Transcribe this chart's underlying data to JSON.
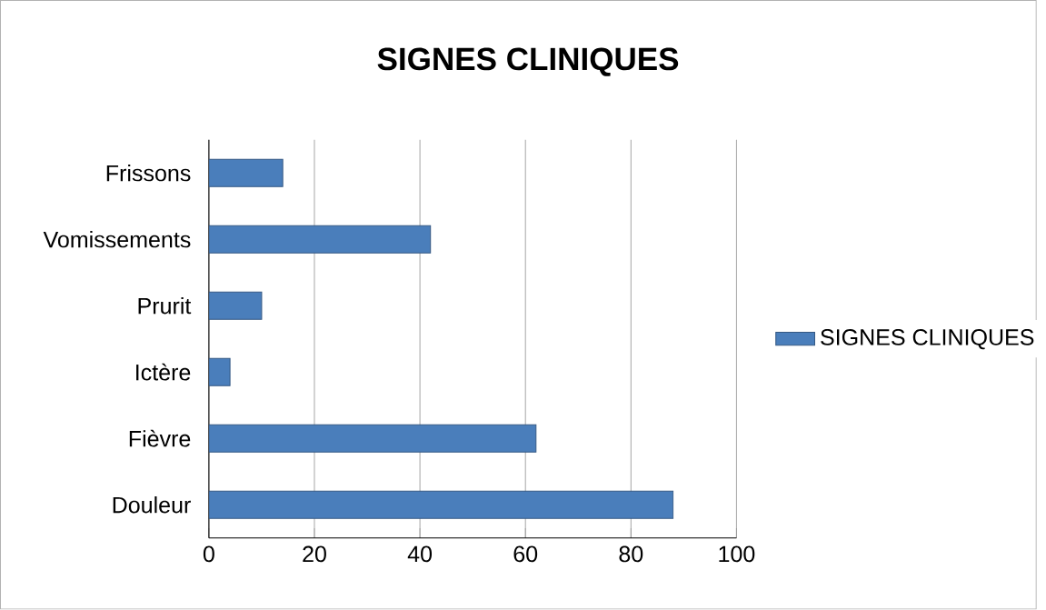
{
  "chart_data": {
    "type": "bar",
    "orientation": "horizontal",
    "title": "SIGNES CLINIQUES",
    "categories": [
      "Frissons",
      "Vomissements",
      "Prurit",
      "Ictère",
      "Fièvre",
      "Douleur"
    ],
    "series": [
      {
        "name": "SIGNES CLINIQUES",
        "color": "#4a7ebb",
        "values": [
          14,
          42,
          10,
          4,
          62,
          88
        ]
      }
    ],
    "xlim": [
      0,
      100
    ],
    "xticks": [
      0,
      20,
      40,
      60,
      80,
      100
    ],
    "grid": "x",
    "legend": "right"
  }
}
